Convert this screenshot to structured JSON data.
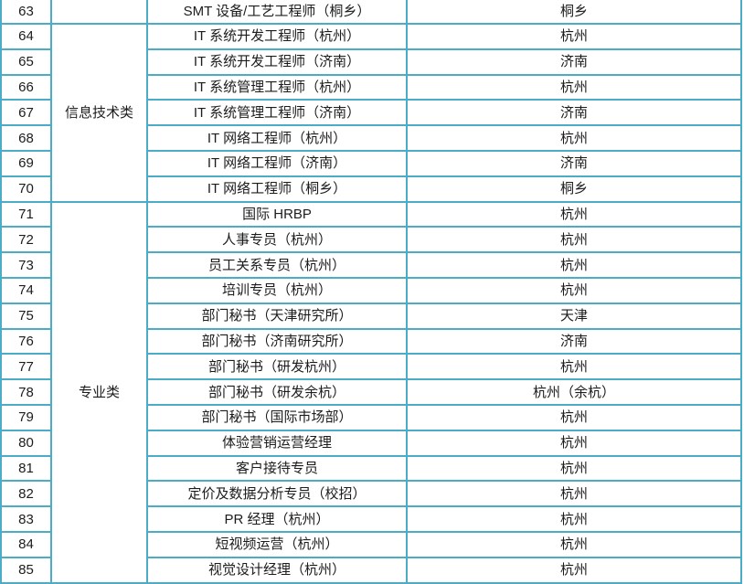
{
  "theme": {
    "border_color": "#4aacc5",
    "text_color": "#1c1c1c",
    "background": "#ffffff"
  },
  "table": {
    "columns": [
      "row_number",
      "category",
      "position",
      "location"
    ],
    "groups": [
      {
        "category": "",
        "rows": [
          {
            "no": "63",
            "position": "SMT 设备/工艺工程师（桐乡）",
            "location": "桐乡"
          }
        ]
      },
      {
        "category": "信息技术类",
        "rows": [
          {
            "no": "64",
            "position": "IT 系统开发工程师（杭州）",
            "location": "杭州"
          },
          {
            "no": "65",
            "position": "IT 系统开发工程师（济南）",
            "location": "济南"
          },
          {
            "no": "66",
            "position": "IT 系统管理工程师（杭州）",
            "location": "杭州"
          },
          {
            "no": "67",
            "position": "IT 系统管理工程师（济南）",
            "location": "济南"
          },
          {
            "no": "68",
            "position": "IT 网络工程师（杭州）",
            "location": "杭州"
          },
          {
            "no": "69",
            "position": "IT 网络工程师（济南）",
            "location": "济南"
          },
          {
            "no": "70",
            "position": "IT 网络工程师（桐乡）",
            "location": "桐乡"
          }
        ]
      },
      {
        "category": "专业类",
        "rows": [
          {
            "no": "71",
            "position": "国际 HRBP",
            "location": "杭州"
          },
          {
            "no": "72",
            "position": "人事专员（杭州）",
            "location": "杭州"
          },
          {
            "no": "73",
            "position": "员工关系专员（杭州）",
            "location": "杭州"
          },
          {
            "no": "74",
            "position": "培训专员（杭州）",
            "location": "杭州"
          },
          {
            "no": "75",
            "position": "部门秘书（天津研究所）",
            "location": "天津"
          },
          {
            "no": "76",
            "position": "部门秘书（济南研究所）",
            "location": "济南"
          },
          {
            "no": "77",
            "position": "部门秘书（研发杭州）",
            "location": "杭州"
          },
          {
            "no": "78",
            "position": "部门秘书（研发余杭）",
            "location": "杭州（余杭）"
          },
          {
            "no": "79",
            "position": "部门秘书（国际市场部）",
            "location": "杭州"
          },
          {
            "no": "80",
            "position": "体验营销运营经理",
            "location": "杭州"
          },
          {
            "no": "81",
            "position": "客户接待专员",
            "location": "杭州"
          },
          {
            "no": "82",
            "position": "定价及数据分析专员（校招）",
            "location": "杭州"
          },
          {
            "no": "83",
            "position": "PR 经理（杭州）",
            "location": "杭州"
          },
          {
            "no": "84",
            "position": "短视频运营（杭州）",
            "location": "杭州"
          },
          {
            "no": "85",
            "position": "视觉设计经理（杭州）",
            "location": "杭州"
          }
        ]
      }
    ]
  }
}
